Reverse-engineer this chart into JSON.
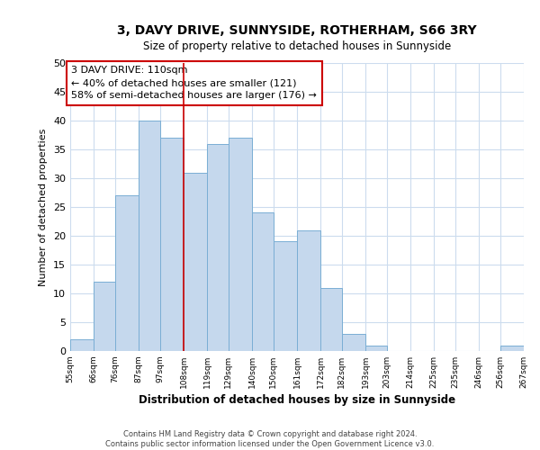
{
  "title": "3, DAVY DRIVE, SUNNYSIDE, ROTHERHAM, S66 3RY",
  "subtitle": "Size of property relative to detached houses in Sunnyside",
  "xlabel": "Distribution of detached houses by size in Sunnyside",
  "ylabel": "Number of detached properties",
  "bin_edges": [
    55,
    66,
    76,
    87,
    97,
    108,
    119,
    129,
    140,
    150,
    161,
    172,
    182,
    193,
    203,
    214,
    225,
    235,
    246,
    256,
    267
  ],
  "bar_heights": [
    2,
    12,
    27,
    40,
    37,
    31,
    36,
    37,
    24,
    19,
    21,
    11,
    3,
    1,
    0,
    0,
    0,
    0,
    0,
    1
  ],
  "bar_color": "#c5d8ed",
  "bar_edge_color": "#7aaed4",
  "ylim": [
    0,
    50
  ],
  "yticks": [
    0,
    5,
    10,
    15,
    20,
    25,
    30,
    35,
    40,
    45,
    50
  ],
  "property_line_x": 108,
  "property_line_color": "#cc0000",
  "annotation_line1": "3 DAVY DRIVE: 110sqm",
  "annotation_line2": "← 40% of detached houses are smaller (121)",
  "annotation_line3": "58% of semi-detached houses are larger (176) →",
  "footer_line1": "Contains HM Land Registry data © Crown copyright and database right 2024.",
  "footer_line2": "Contains public sector information licensed under the Open Government Licence v3.0.",
  "tick_labels": [
    "55sqm",
    "66sqm",
    "76sqm",
    "87sqm",
    "97sqm",
    "108sqm",
    "119sqm",
    "129sqm",
    "140sqm",
    "150sqm",
    "161sqm",
    "172sqm",
    "182sqm",
    "193sqm",
    "203sqm",
    "214sqm",
    "225sqm",
    "235sqm",
    "246sqm",
    "256sqm",
    "267sqm"
  ],
  "background_color": "#ffffff",
  "grid_color": "#ccdcee"
}
